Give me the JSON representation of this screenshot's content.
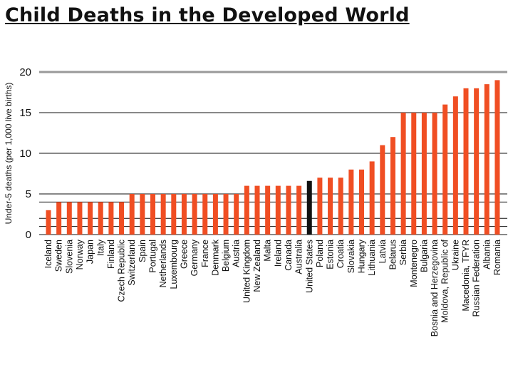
{
  "slide": {
    "title": "Child Deaths in the Developed World"
  },
  "colors": {
    "bar": "#f04e23",
    "highlight": "#111111",
    "gridline": "#111111",
    "gridline_light": "#9a9a9a"
  },
  "chart_data": {
    "type": "bar",
    "title": "",
    "xlabel": "",
    "ylabel": "Under-5 deaths (per 1,000 live births)",
    "ylim": [
      0,
      20
    ],
    "yticks": [
      0,
      5,
      10,
      15,
      20
    ],
    "grid": true,
    "highlight_category": "United States",
    "categories": [
      "Iceland",
      "Sweden",
      "Slovenia",
      "Norway",
      "Japan",
      "Italy",
      "Finland",
      "Czech Republic",
      "Switzerland",
      "Spain",
      "Portugal",
      "Netherlands",
      "Luxembourg",
      "Greece",
      "Germany",
      "France",
      "Denmark",
      "Belgium",
      "Austria",
      "United Kingdom",
      "New Zealand",
      "Malta",
      "Ireland",
      "Canada",
      "Australia",
      "United States",
      "Poland",
      "Estonia",
      "Croatia",
      "Slovakia",
      "Hungary",
      "Lithuania",
      "Latvia",
      "Belarus",
      "Serbia",
      "Montenegro",
      "Bulgaria",
      "Bosnia and Herzegovina",
      "Moldova, Republic of",
      "Ukraine",
      "Macedonia, TFYR",
      "Russian Federation",
      "Albania",
      "Romania"
    ],
    "values": [
      3,
      4,
      4,
      4,
      4,
      4,
      4,
      4,
      5,
      5,
      5,
      5,
      5,
      5,
      5,
      5,
      5,
      5,
      5,
      6,
      6,
      6,
      6,
      6,
      6,
      6.6,
      7,
      7,
      7,
      8,
      8,
      9,
      11,
      12,
      15,
      15,
      15,
      15,
      16,
      17,
      18,
      18,
      18.5,
      19
    ]
  }
}
